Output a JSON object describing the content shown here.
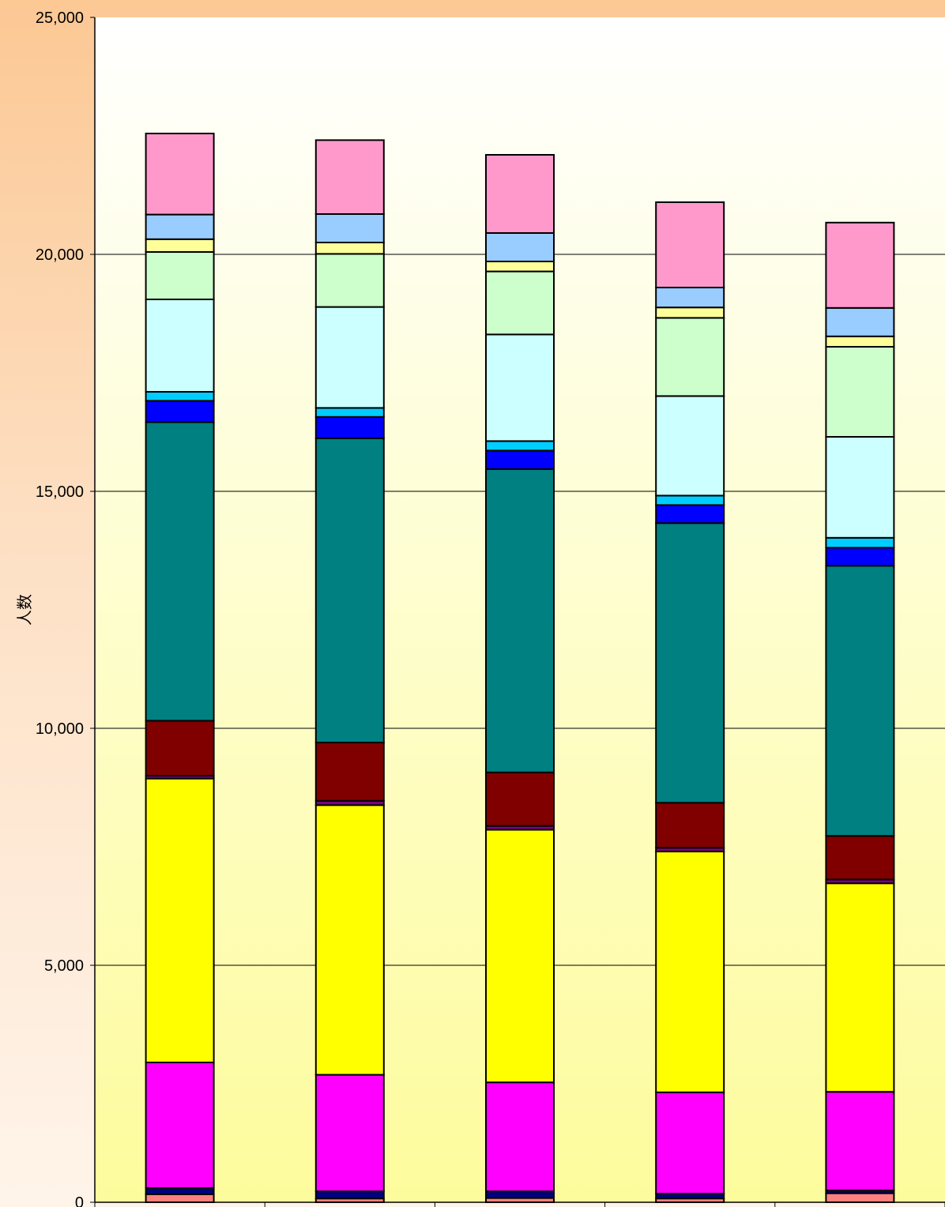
{
  "chart_data": {
    "type": "bar",
    "stacked": true,
    "title": "",
    "xlabel": "",
    "ylabel": "人数",
    "ylim": [
      0,
      25000
    ],
    "yticks": [
      "0",
      "5,000",
      "10,000",
      "15,000",
      "20,000",
      "25,000"
    ],
    "grid": true,
    "legend": "none",
    "categories": [
      "",
      "",
      "",
      "",
      ""
    ],
    "series": [
      {
        "color": "#ff8080",
        "values": [
          170,
          80,
          90,
          80,
          190
        ]
      },
      {
        "color": "#000080",
        "values": [
          130,
          150,
          140,
          100,
          60
        ]
      },
      {
        "color": "#ff00ff",
        "values": [
          2650,
          2460,
          2300,
          2140,
          2080
        ]
      },
      {
        "color": "#ffff00",
        "values": [
          5990,
          5690,
          5330,
          5080,
          4400
        ]
      },
      {
        "color": "#800080",
        "values": [
          60,
          90,
          80,
          80,
          80
        ]
      },
      {
        "color": "#800000",
        "values": [
          1160,
          1230,
          1130,
          950,
          920
        ]
      },
      {
        "color": "#008080",
        "values": [
          6300,
          6420,
          6400,
          5900,
          5700
        ]
      },
      {
        "color": "#0000ff",
        "values": [
          450,
          450,
          390,
          380,
          380
        ]
      },
      {
        "color": "#00ccff",
        "values": [
          190,
          190,
          200,
          200,
          210
        ]
      },
      {
        "color": "#ccffff",
        "values": [
          1950,
          2130,
          2250,
          2100,
          2130
        ]
      },
      {
        "color": "#ccffcc",
        "values": [
          1000,
          1120,
          1330,
          1650,
          1900
        ]
      },
      {
        "color": "#ffff99",
        "values": [
          270,
          240,
          210,
          220,
          220
        ]
      },
      {
        "color": "#99ccff",
        "values": [
          520,
          600,
          600,
          420,
          600
        ]
      },
      {
        "color": "#ff99cc",
        "values": [
          1710,
          1560,
          1650,
          1800,
          1800
        ]
      }
    ]
  }
}
